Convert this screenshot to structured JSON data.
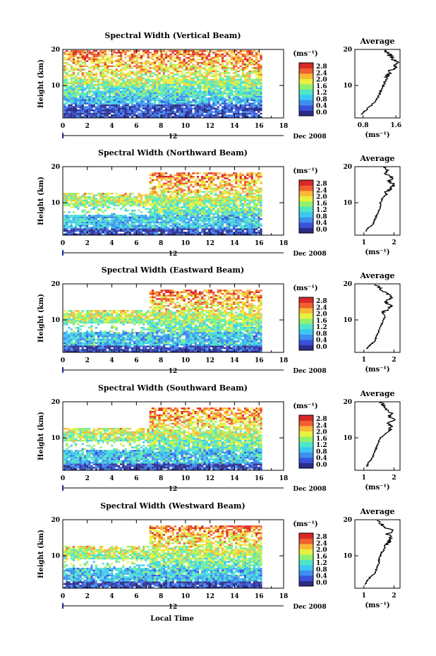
{
  "figure": {
    "xlabel": "Local Time",
    "ylabel": "Height (km)",
    "avg_title": "Average",
    "date_label": "Dec 2008",
    "date_tick": "12",
    "unit_label": "(ms⁻¹)",
    "avg_xlabel": "(ms⁻¹)"
  },
  "colormap": {
    "colors": [
      "#2b2b88",
      "#3a52d8",
      "#3f8ff0",
      "#3cc8f0",
      "#4fe6c8",
      "#90f070",
      "#e8f040",
      "#f8b838",
      "#f06030",
      "#d82828"
    ],
    "labels": [
      "0.0",
      "0.4",
      "0.8",
      "1.2",
      "1.6",
      "2.0",
      "2.4",
      "2.8"
    ]
  },
  "chart_data": [
    {
      "type": "heatmap",
      "title": "Spectral Width (Vertical Beam)",
      "x_ticks": [
        "0",
        "2",
        "4",
        "6",
        "8",
        "10",
        "12",
        "14",
        "16",
        "18"
      ],
      "xlim": [
        0,
        18
      ],
      "ylim": [
        1,
        20
      ],
      "y_ticks": [
        "10",
        "20"
      ],
      "avg": {
        "x_ticks": [
          "0.8",
          "1.6"
        ],
        "xlim": [
          0.6,
          1.7
        ],
        "heights": [
          2,
          3,
          4,
          5,
          6,
          7,
          8,
          9,
          10,
          11,
          12,
          13,
          14,
          15,
          16,
          17,
          18,
          19,
          20
        ],
        "values": [
          0.75,
          0.85,
          0.95,
          1.05,
          1.12,
          1.18,
          1.22,
          1.25,
          1.3,
          1.33,
          1.38,
          1.4,
          1.45,
          1.55,
          1.62,
          1.58,
          1.48,
          1.38,
          1.3
        ]
      }
    },
    {
      "type": "heatmap",
      "title": "Spectral Width (Northward Beam)",
      "x_ticks": [
        "0",
        "2",
        "4",
        "6",
        "8",
        "10",
        "12",
        "14",
        "16",
        "18"
      ],
      "xlim": [
        0,
        18
      ],
      "ylim": [
        1,
        20
      ],
      "y_ticks": [
        "10",
        "20"
      ],
      "avg": {
        "x_ticks": [
          "1",
          "2"
        ],
        "xlim": [
          0.7,
          2.2
        ],
        "heights": [
          2,
          3,
          4,
          5,
          6,
          7,
          8,
          9,
          10,
          11,
          12,
          13,
          14,
          15,
          16,
          17,
          18,
          19,
          20
        ],
        "values": [
          1.05,
          1.15,
          1.3,
          1.35,
          1.4,
          1.45,
          1.5,
          1.55,
          1.55,
          1.6,
          1.7,
          1.75,
          1.9,
          2.0,
          1.85,
          1.95,
          1.7,
          1.8,
          1.6
        ]
      }
    },
    {
      "type": "heatmap",
      "title": "Spectral Width (Eastward Beam)",
      "x_ticks": [
        "0",
        "2",
        "4",
        "6",
        "8",
        "10",
        "12",
        "14",
        "16",
        "18"
      ],
      "xlim": [
        0,
        18
      ],
      "ylim": [
        1,
        20
      ],
      "y_ticks": [
        "10",
        "20"
      ],
      "avg": {
        "x_ticks": [
          "1",
          "2"
        ],
        "xlim": [
          0.7,
          2.2
        ],
        "heights": [
          2,
          3,
          4,
          5,
          6,
          7,
          8,
          9,
          10,
          11,
          12,
          13,
          14,
          15,
          16,
          17,
          18,
          19,
          20
        ],
        "values": [
          1.1,
          1.2,
          1.35,
          1.4,
          1.45,
          1.5,
          1.55,
          1.6,
          1.65,
          1.7,
          1.6,
          1.8,
          1.95,
          1.7,
          1.9,
          1.85,
          1.6,
          1.5,
          1.4
        ]
      }
    },
    {
      "type": "heatmap",
      "title": "Spectral Width (Southward Beam)",
      "x_ticks": [
        "0",
        "2",
        "4",
        "6",
        "8",
        "10",
        "12",
        "14",
        "16",
        "18"
      ],
      "xlim": [
        0,
        18
      ],
      "ylim": [
        1,
        20
      ],
      "y_ticks": [
        "10",
        "20"
      ],
      "avg": {
        "x_ticks": [
          "1",
          "2"
        ],
        "xlim": [
          0.7,
          2.2
        ],
        "heights": [
          2,
          3,
          4,
          5,
          6,
          7,
          8,
          9,
          10,
          11,
          12,
          13,
          14,
          15,
          16,
          17,
          18,
          19,
          20
        ],
        "values": [
          1.1,
          1.15,
          1.25,
          1.3,
          1.35,
          1.4,
          1.45,
          1.5,
          1.55,
          1.7,
          1.85,
          1.9,
          1.8,
          2.0,
          1.85,
          1.9,
          1.75,
          1.65,
          1.55
        ]
      }
    },
    {
      "type": "heatmap",
      "title": "Spectral Width (Westward Beam)",
      "x_ticks": [
        "0",
        "2",
        "4",
        "6",
        "8",
        "10",
        "12",
        "14",
        "16",
        "18"
      ],
      "xlim": [
        0,
        18
      ],
      "ylim": [
        1,
        20
      ],
      "y_ticks": [
        "10",
        "20"
      ],
      "avg": {
        "x_ticks": [
          "1",
          "2"
        ],
        "xlim": [
          0.7,
          2.2
        ],
        "heights": [
          2,
          3,
          4,
          5,
          6,
          7,
          8,
          9,
          10,
          11,
          12,
          13,
          14,
          15,
          16,
          17,
          18,
          19,
          20
        ],
        "values": [
          1.05,
          1.1,
          1.2,
          1.35,
          1.4,
          1.45,
          1.5,
          1.5,
          1.55,
          1.6,
          1.7,
          1.75,
          1.85,
          1.9,
          1.8,
          1.95,
          1.7,
          1.55,
          1.5
        ]
      }
    }
  ]
}
